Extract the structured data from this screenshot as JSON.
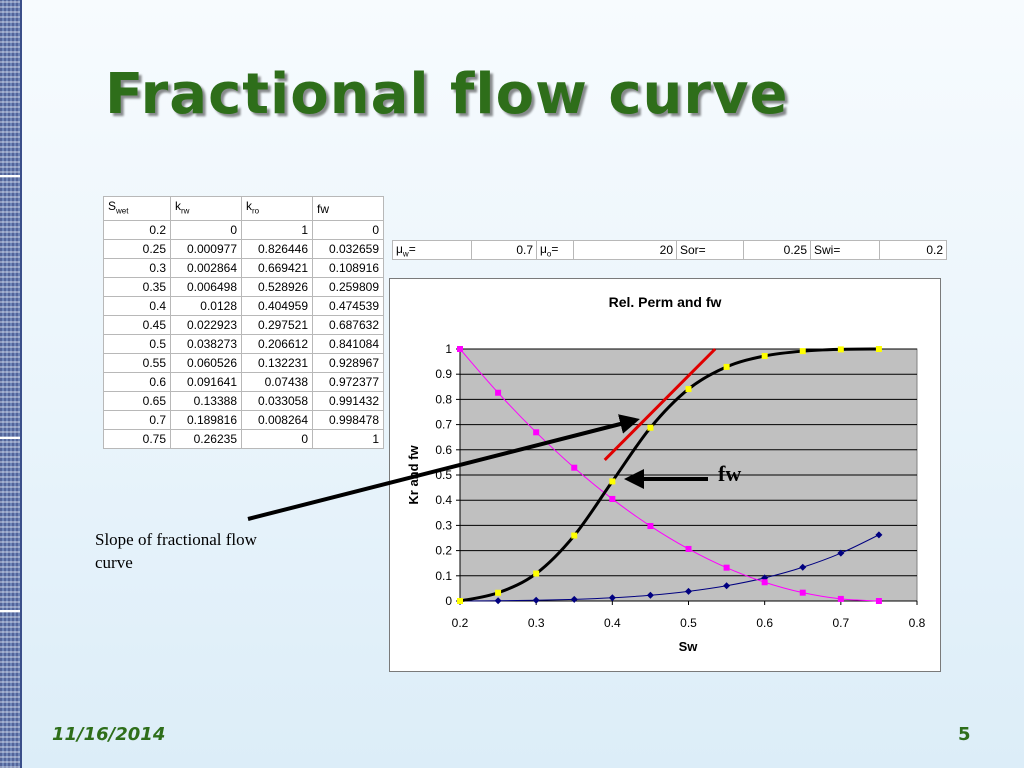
{
  "slide": {
    "title": "Fractional flow curve",
    "date": "11/16/2014",
    "page_number": "5",
    "slope_annotation": "Slope of fractional flow curve",
    "fw_annotation": "fw"
  },
  "colors": {
    "title_green": "#2e6e1a",
    "krw_series": "#000080",
    "kro_series": "#ff00ff",
    "fw_series": "#000000",
    "fw_markers": "#ffff00",
    "tangent_line": "#e00000",
    "plot_area": "#c0c0c0"
  },
  "table": {
    "headers": [
      {
        "base": "S",
        "sub": "wet"
      },
      {
        "base": "k",
        "sub": "rw"
      },
      {
        "base": "k",
        "sub": "ro"
      },
      {
        "base": "fw",
        "sub": ""
      }
    ],
    "rows": [
      [
        "0.2",
        "0",
        "1",
        "0"
      ],
      [
        "0.25",
        "0.000977",
        "0.826446",
        "0.032659"
      ],
      [
        "0.3",
        "0.002864",
        "0.669421",
        "0.108916"
      ],
      [
        "0.35",
        "0.006498",
        "0.528926",
        "0.259809"
      ],
      [
        "0.4",
        "0.0128",
        "0.404959",
        "0.474539"
      ],
      [
        "0.45",
        "0.022923",
        "0.297521",
        "0.687632"
      ],
      [
        "0.5",
        "0.038273",
        "0.206612",
        "0.841084"
      ],
      [
        "0.55",
        "0.060526",
        "0.132231",
        "0.928967"
      ],
      [
        "0.6",
        "0.091641",
        "0.07438",
        "0.972377"
      ],
      [
        "0.65",
        "0.13388",
        "0.033058",
        "0.991432"
      ],
      [
        "0.7",
        "0.189816",
        "0.008264",
        "0.998478"
      ],
      [
        "0.75",
        "0.26235",
        "0",
        "1"
      ]
    ]
  },
  "params": {
    "mu_w_label": "μ",
    "mu_w_sub": "w",
    "mu_w_eq": "=",
    "mu_w_value": "0.7",
    "mu_o_label": "μ",
    "mu_o_sub": "o",
    "mu_o_eq": "=",
    "mu_o_value": "20",
    "sor_label": "Sor=",
    "sor_value": "0.25",
    "swi_label": "Swi=",
    "swi_value": "0.2"
  },
  "chart_data": {
    "type": "line",
    "title": "Rel. Perm and fw",
    "xlabel": "Sw",
    "ylabel": "Kr and fw",
    "xlim": [
      0.2,
      0.8
    ],
    "ylim": [
      0,
      1
    ],
    "x_ticks": [
      "0.2",
      "0.3",
      "0.4",
      "0.5",
      "0.6",
      "0.7",
      "0.8"
    ],
    "y_ticks": [
      "0",
      "0.1",
      "0.2",
      "0.3",
      "0.4",
      "0.5",
      "0.6",
      "0.7",
      "0.8",
      "0.9",
      "1"
    ],
    "grid": true,
    "x": [
      0.2,
      0.25,
      0.3,
      0.35,
      0.4,
      0.45,
      0.5,
      0.55,
      0.6,
      0.65,
      0.7,
      0.75
    ],
    "series": [
      {
        "key": "krw",
        "values": [
          0,
          0.000977,
          0.002864,
          0.006498,
          0.0128,
          0.022923,
          0.038273,
          0.060526,
          0.091641,
          0.13388,
          0.189816,
          0.26235
        ]
      },
      {
        "key": "kro",
        "values": [
          1,
          0.826446,
          0.669421,
          0.528926,
          0.404959,
          0.297521,
          0.206612,
          0.132231,
          0.07438,
          0.033058,
          0.008264,
          0
        ]
      },
      {
        "key": "fw",
        "values": [
          0,
          0.032659,
          0.108916,
          0.259809,
          0.474539,
          0.687632,
          0.841084,
          0.928967,
          0.972377,
          0.991432,
          0.998478,
          1
        ]
      }
    ],
    "tangent_line": {
      "from": [
        0.39,
        0.56
      ],
      "to": [
        0.535,
        1.0
      ]
    }
  }
}
